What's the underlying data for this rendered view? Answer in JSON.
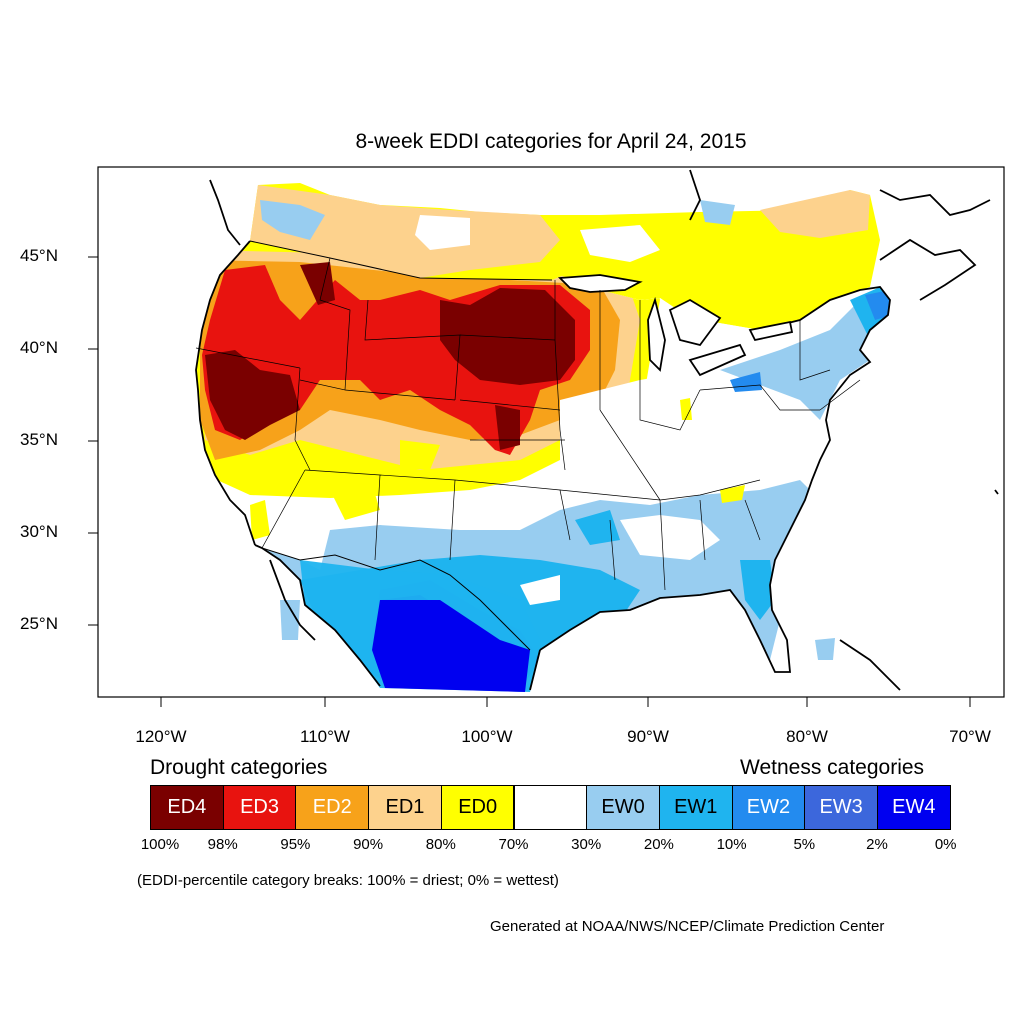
{
  "title": "8-week EDDI categories for April 24, 2015",
  "lat_labels": [
    "45°N",
    "40°N",
    "35°N",
    "30°N",
    "25°N"
  ],
  "lon_labels": [
    "120°W",
    "110°W",
    "100°W",
    "90°W",
    "80°W",
    "70°W"
  ],
  "legend": {
    "drought_heading": "Drought categories",
    "wetness_heading": "Wetness categories",
    "categories": [
      {
        "label": "ED4",
        "color": "#7a0000",
        "text_color": "#ffffff"
      },
      {
        "label": "ED3",
        "color": "#e8130f",
        "text_color": "#ffffff"
      },
      {
        "label": "ED2",
        "color": "#f7a21a",
        "text_color": "#ffffff"
      },
      {
        "label": "ED1",
        "color": "#fdd28d",
        "text_color": "#000000"
      },
      {
        "label": "ED0",
        "color": "#ffff00",
        "text_color": "#000000"
      },
      {
        "label": "",
        "color": "#ffffff",
        "text_color": "#000000"
      },
      {
        "label": "EW0",
        "color": "#98cdf0",
        "text_color": "#000000"
      },
      {
        "label": "EW1",
        "color": "#1fb4ef",
        "text_color": "#000000"
      },
      {
        "label": "EW2",
        "color": "#238bef",
        "text_color": "#ffffff"
      },
      {
        "label": "EW3",
        "color": "#3c67dc",
        "text_color": "#ffffff"
      },
      {
        "label": "EW4",
        "color": "#0000f0",
        "text_color": "#ffffff"
      }
    ],
    "breaks": [
      "100%",
      "98%",
      "95%",
      "90%",
      "80%",
      "70%",
      "30%",
      "20%",
      "10%",
      "5%",
      "2%",
      "0%"
    ]
  },
  "note": "(EDDI-percentile category breaks: 100% = driest; 0% = wettest)",
  "credit": "Generated at NOAA/NWS/NCEP/Climate Prediction Center"
}
